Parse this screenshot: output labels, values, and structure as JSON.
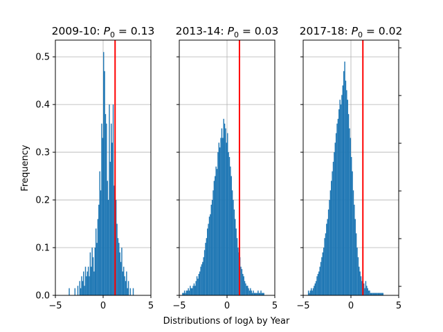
{
  "figure": {
    "xlabel": "Distributions of logλ by Year",
    "ylabel": "Frequency"
  },
  "chart_data": [
    {
      "type": "histogram",
      "title": "2009-10: P₀ = 0.13",
      "title_parts": {
        "year": "2009-10: ",
        "symbol": "P",
        "subscript": "0",
        "value": " = 0.13"
      },
      "xlim": [
        -5,
        5
      ],
      "ylim": [
        0,
        0.535
      ],
      "xticks": [
        -5,
        0,
        5
      ],
      "yticks": [
        0.0,
        0.1,
        0.2,
        0.3,
        0.4,
        0.5
      ],
      "ytick_labels_shown": true,
      "grid": true,
      "bar_color": "#1f77b4",
      "vline_x": 1.25,
      "vline_color": "#ff0000",
      "x": [
        -3.6,
        -3.0,
        -2.7,
        -2.5,
        -2.4,
        -2.3,
        -2.2,
        -2.1,
        -2.0,
        -1.9,
        -1.8,
        -1.7,
        -1.6,
        -1.5,
        -1.4,
        -1.3,
        -1.2,
        -1.1,
        -1.0,
        -0.9,
        -0.8,
        -0.7,
        -0.6,
        -0.5,
        -0.4,
        -0.3,
        -0.2,
        -0.1,
        0.0,
        0.1,
        0.2,
        0.3,
        0.4,
        0.5,
        0.6,
        0.7,
        0.8,
        0.9,
        1.0,
        1.1,
        1.2,
        1.3,
        1.4,
        1.5,
        1.6,
        1.7,
        1.8,
        1.9,
        2.0,
        2.1,
        2.2,
        2.3,
        2.4,
        2.5,
        2.6,
        2.8,
        3.1
      ],
      "values": [
        0.015,
        0.015,
        0.02,
        0.03,
        0.015,
        0.04,
        0.03,
        0.05,
        0.02,
        0.06,
        0.04,
        0.05,
        0.06,
        0.04,
        0.09,
        0.06,
        0.1,
        0.08,
        0.05,
        0.1,
        0.14,
        0.11,
        0.16,
        0.19,
        0.26,
        0.22,
        0.36,
        0.33,
        0.51,
        0.47,
        0.38,
        0.36,
        0.24,
        0.2,
        0.4,
        0.28,
        0.36,
        0.32,
        0.4,
        0.23,
        0.26,
        0.2,
        0.15,
        0.12,
        0.11,
        0.09,
        0.07,
        0.1,
        0.05,
        0.06,
        0.04,
        0.03,
        0.05,
        0.015,
        0.03,
        0.015,
        0.015
      ]
    },
    {
      "type": "histogram",
      "title": "2013-14: P₀ = 0.03",
      "title_parts": {
        "year": "2013-14: ",
        "symbol": "P",
        "subscript": "0",
        "value": " = 0.03"
      },
      "xlim": [
        -5,
        5
      ],
      "ylim": [
        0,
        0.535
      ],
      "xticks": [
        -5,
        0,
        5
      ],
      "yticks": [
        0.0,
        0.1,
        0.2,
        0.3,
        0.4,
        0.5
      ],
      "ytick_labels_shown": false,
      "grid": true,
      "bar_color": "#1f77b4",
      "vline_x": 1.3,
      "vline_color": "#ff0000",
      "x": [
        -4.7,
        -4.6,
        -4.5,
        -4.4,
        -4.3,
        -4.2,
        -4.1,
        -4.0,
        -3.9,
        -3.8,
        -3.7,
        -3.6,
        -3.5,
        -3.4,
        -3.3,
        -3.2,
        -3.1,
        -3.0,
        -2.9,
        -2.8,
        -2.7,
        -2.6,
        -2.5,
        -2.4,
        -2.3,
        -2.2,
        -2.1,
        -2.0,
        -1.9,
        -1.8,
        -1.7,
        -1.6,
        -1.5,
        -1.4,
        -1.3,
        -1.2,
        -1.1,
        -1.0,
        -0.9,
        -0.8,
        -0.7,
        -0.6,
        -0.5,
        -0.4,
        -0.3,
        -0.2,
        -0.1,
        0.0,
        0.1,
        0.2,
        0.3,
        0.4,
        0.5,
        0.6,
        0.7,
        0.8,
        0.9,
        1.0,
        1.1,
        1.2,
        1.3,
        1.4,
        1.5,
        1.6,
        1.7,
        1.8,
        1.9,
        2.0,
        2.1,
        2.2,
        2.3,
        2.4,
        2.5,
        2.6,
        2.7,
        2.8,
        2.9,
        3.0,
        3.1,
        3.2,
        3.3,
        3.4,
        3.5,
        3.6,
        3.7,
        3.8
      ],
      "values": [
        0.005,
        0.005,
        0.01,
        0.005,
        0.01,
        0.01,
        0.015,
        0.01,
        0.02,
        0.015,
        0.015,
        0.02,
        0.025,
        0.02,
        0.03,
        0.04,
        0.035,
        0.045,
        0.05,
        0.06,
        0.065,
        0.07,
        0.08,
        0.095,
        0.11,
        0.12,
        0.14,
        0.15,
        0.165,
        0.17,
        0.19,
        0.2,
        0.22,
        0.24,
        0.25,
        0.27,
        0.265,
        0.3,
        0.32,
        0.31,
        0.33,
        0.35,
        0.33,
        0.37,
        0.36,
        0.35,
        0.32,
        0.34,
        0.3,
        0.29,
        0.27,
        0.25,
        0.22,
        0.2,
        0.18,
        0.16,
        0.14,
        0.12,
        0.1,
        0.09,
        0.08,
        0.06,
        0.055,
        0.045,
        0.04,
        0.03,
        0.025,
        0.02,
        0.02,
        0.015,
        0.01,
        0.015,
        0.01,
        0.005,
        0.01,
        0.005,
        0.005,
        0.005,
        0.005,
        0.01,
        0.005,
        0.005,
        0.01,
        0.005,
        0.005,
        0.005
      ]
    },
    {
      "type": "histogram",
      "title": "2017-18: P₀ = 0.02",
      "title_parts": {
        "year": "2017-18: ",
        "symbol": "P",
        "subscript": "0",
        "value": " = 0.02"
      },
      "xlim": [
        -5,
        5
      ],
      "ylim": [
        0,
        0.535
      ],
      "xticks": [
        -5,
        0,
        5
      ],
      "yticks": [
        0.0,
        0.1,
        0.2,
        0.3,
        0.4,
        0.5
      ],
      "ytick_labels_shown": false,
      "grid": true,
      "bar_color": "#1f77b4",
      "vline_x": 1.25,
      "vline_color": "#ff0000",
      "x": [
        -4.5,
        -4.4,
        -4.3,
        -4.2,
        -4.1,
        -4.0,
        -3.9,
        -3.8,
        -3.7,
        -3.6,
        -3.5,
        -3.4,
        -3.3,
        -3.2,
        -3.1,
        -3.0,
        -2.9,
        -2.8,
        -2.7,
        -2.6,
        -2.5,
        -2.4,
        -2.3,
        -2.2,
        -2.1,
        -2.0,
        -1.9,
        -1.8,
        -1.7,
        -1.6,
        -1.5,
        -1.4,
        -1.3,
        -1.2,
        -1.1,
        -1.0,
        -0.9,
        -0.8,
        -0.7,
        -0.6,
        -0.5,
        -0.4,
        -0.3,
        -0.2,
        -0.1,
        0.0,
        0.1,
        0.2,
        0.3,
        0.4,
        0.5,
        0.6,
        0.7,
        0.8,
        0.9,
        1.0,
        1.1,
        1.2,
        1.3,
        1.4,
        1.5,
        1.6,
        1.7,
        1.8,
        1.9,
        2.0,
        2.1,
        2.2,
        2.3,
        2.4,
        2.5,
        2.6,
        2.7,
        2.8,
        2.9,
        3.0,
        3.1,
        3.2,
        3.3
      ],
      "values": [
        0.01,
        0.005,
        0.01,
        0.015,
        0.01,
        0.015,
        0.02,
        0.025,
        0.03,
        0.04,
        0.045,
        0.05,
        0.06,
        0.07,
        0.08,
        0.09,
        0.1,
        0.12,
        0.13,
        0.15,
        0.16,
        0.18,
        0.2,
        0.22,
        0.24,
        0.26,
        0.28,
        0.3,
        0.32,
        0.34,
        0.36,
        0.37,
        0.39,
        0.41,
        0.4,
        0.42,
        0.44,
        0.47,
        0.49,
        0.45,
        0.43,
        0.41,
        0.38,
        0.35,
        0.33,
        0.29,
        0.26,
        0.22,
        0.19,
        0.16,
        0.13,
        0.1,
        0.08,
        0.06,
        0.05,
        0.04,
        0.03,
        0.02,
        0.025,
        0.015,
        0.03,
        0.02,
        0.015,
        0.01,
        0.01,
        0.005,
        0.005,
        0.005,
        0.005,
        0.005,
        0.005,
        0.005,
        0.005,
        0.005,
        0.005,
        0.005,
        0.005,
        0.005,
        0.005
      ]
    }
  ]
}
